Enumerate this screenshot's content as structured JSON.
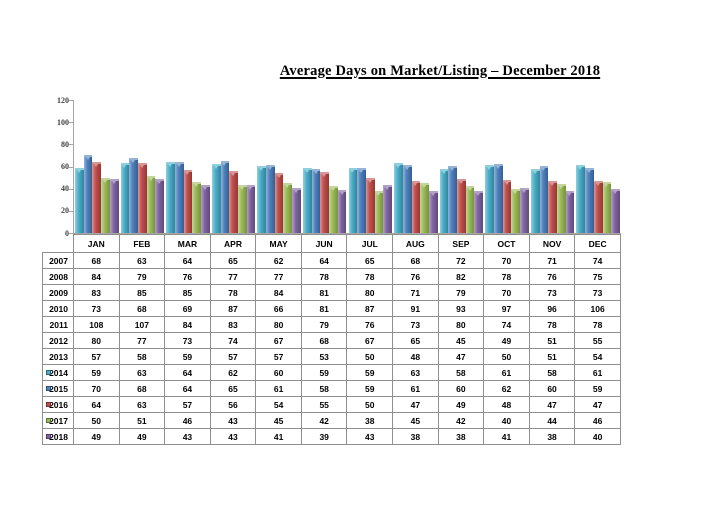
{
  "title": "Average Days on Market/Listing – December 2018",
  "chart_data": {
    "type": "bar",
    "title": "Average Days on Market/Listing – December 2018",
    "categories": [
      "JAN",
      "FEB",
      "MAR",
      "APR",
      "MAY",
      "JUN",
      "JUL",
      "AUG",
      "SEP",
      "OCT",
      "NOV",
      "DEC"
    ],
    "ylim": [
      0,
      120
    ],
    "yticks": [
      0,
      20,
      40,
      60,
      80,
      100,
      120
    ],
    "grid": false,
    "legend_position": "data-table-row-headers",
    "series": [
      {
        "name": "2014",
        "color": "#4BACC6",
        "light": "#8ED0E0",
        "dark": "#31859C",
        "values": [
          59,
          63,
          64,
          62,
          60,
          59,
          59,
          63,
          58,
          61,
          58,
          61
        ]
      },
      {
        "name": "2015",
        "color": "#4F81BD",
        "light": "#95B3D7",
        "dark": "#365F91",
        "values": [
          70,
          68,
          64,
          65,
          61,
          58,
          59,
          61,
          60,
          62,
          60,
          59
        ]
      },
      {
        "name": "2016",
        "color": "#C0504D",
        "light": "#D99694",
        "dark": "#953735",
        "values": [
          64,
          63,
          57,
          56,
          54,
          55,
          50,
          47,
          49,
          48,
          47,
          47
        ]
      },
      {
        "name": "2017",
        "color": "#9BBB59",
        "light": "#C3D69B",
        "dark": "#76933C",
        "values": [
          50,
          51,
          46,
          43,
          45,
          42,
          38,
          45,
          42,
          40,
          44,
          46
        ]
      },
      {
        "name": "2018",
        "color": "#8064A2",
        "light": "#B3A2C7",
        "dark": "#604A7B",
        "values": [
          49,
          49,
          43,
          43,
          41,
          39,
          43,
          38,
          38,
          41,
          38,
          40
        ]
      }
    ]
  },
  "table": {
    "columns": [
      "JAN",
      "FEB",
      "MAR",
      "APR",
      "MAY",
      "JUN",
      "JUL",
      "AUG",
      "SEP",
      "OCT",
      "NOV",
      "DEC"
    ],
    "rows": [
      {
        "year": "2007",
        "key_color": null,
        "values": [
          68,
          63,
          64,
          65,
          62,
          64,
          65,
          68,
          72,
          70,
          71,
          74
        ]
      },
      {
        "year": "2008",
        "key_color": null,
        "values": [
          84,
          79,
          76,
          77,
          77,
          78,
          78,
          76,
          82,
          78,
          76,
          75
        ]
      },
      {
        "year": "2009",
        "key_color": null,
        "values": [
          83,
          85,
          85,
          78,
          84,
          81,
          80,
          71,
          79,
          70,
          73,
          73
        ]
      },
      {
        "year": "2010",
        "key_color": null,
        "values": [
          73,
          68,
          69,
          87,
          66,
          81,
          87,
          91,
          93,
          97,
          96,
          106
        ]
      },
      {
        "year": "2011",
        "key_color": null,
        "values": [
          108,
          107,
          84,
          83,
          80,
          79,
          76,
          73,
          80,
          74,
          78,
          78
        ]
      },
      {
        "year": "2012",
        "key_color": null,
        "values": [
          80,
          77,
          73,
          74,
          67,
          68,
          67,
          65,
          45,
          49,
          51,
          55
        ]
      },
      {
        "year": "2013",
        "key_color": null,
        "values": [
          57,
          58,
          59,
          57,
          57,
          53,
          50,
          48,
          47,
          50,
          51,
          54
        ]
      },
      {
        "year": "2014",
        "key_color": "#4BACC6",
        "values": [
          59,
          63,
          64,
          62,
          60,
          59,
          59,
          63,
          58,
          61,
          58,
          61
        ]
      },
      {
        "year": "2015",
        "key_color": "#4F81BD",
        "values": [
          70,
          68,
          64,
          65,
          61,
          58,
          59,
          61,
          60,
          62,
          60,
          59
        ]
      },
      {
        "year": "2016",
        "key_color": "#C0504D",
        "values": [
          64,
          63,
          57,
          56,
          54,
          55,
          50,
          47,
          49,
          48,
          47,
          47
        ]
      },
      {
        "year": "2017",
        "key_color": "#9BBB59",
        "values": [
          50,
          51,
          46,
          43,
          45,
          42,
          38,
          45,
          42,
          40,
          44,
          46
        ]
      },
      {
        "year": "2018",
        "key_color": "#8064A2",
        "values": [
          49,
          49,
          43,
          43,
          41,
          39,
          43,
          38,
          38,
          41,
          38,
          40
        ]
      }
    ]
  },
  "colors": {
    "axis_line": "#a6a6a6",
    "axis_label": "#404040",
    "table_border": "#8f8f8f",
    "background": "#ffffff"
  }
}
